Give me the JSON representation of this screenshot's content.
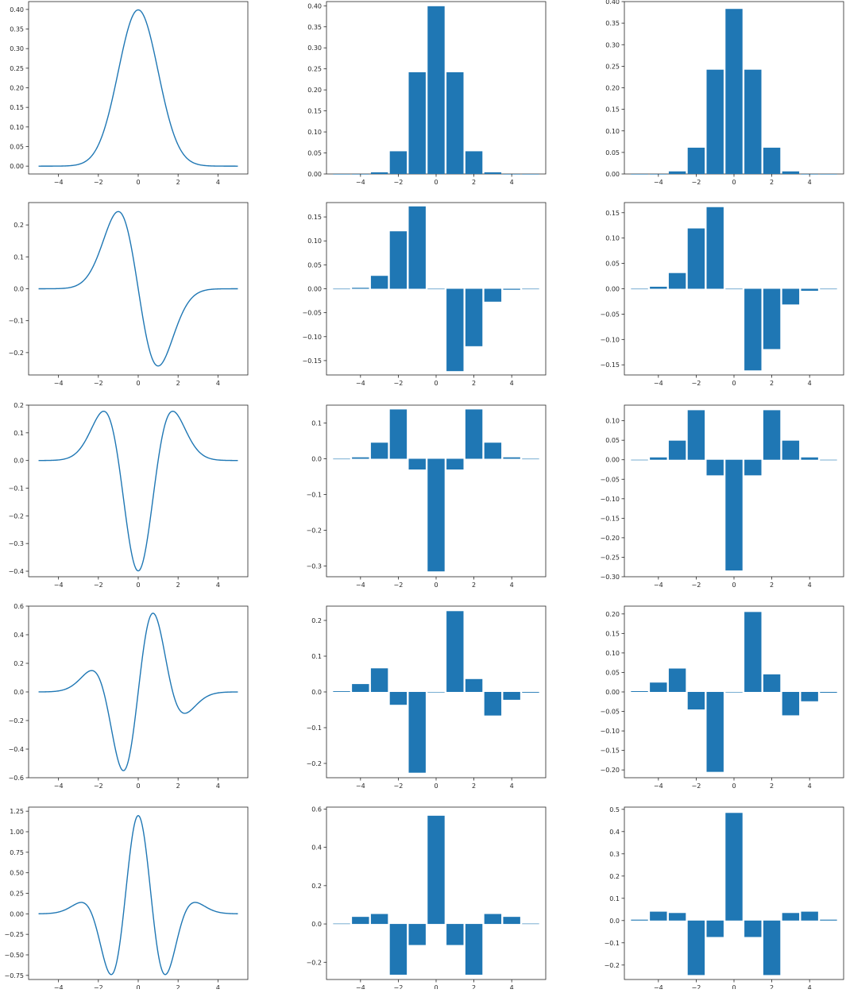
{
  "colors": {
    "series": "#1f77b4",
    "axis": "#262626",
    "zero": "#a6c8e0"
  },
  "chart_data": [
    {
      "type": "line",
      "x_range": [
        -5,
        5
      ],
      "xlim": [
        -5.5,
        5.5
      ],
      "ylim": [
        -0.02,
        0.42
      ],
      "xticks": [
        -4,
        -2,
        0,
        2,
        4
      ],
      "xtick_labels": [
        "−4",
        "−2",
        "0",
        "2",
        "4"
      ],
      "yticks": [
        0,
        0.05,
        0.1,
        0.15,
        0.2,
        0.25,
        0.3,
        0.35,
        0.4
      ],
      "ytick_labels": [
        "0.00",
        "0.05",
        "0.10",
        "0.15",
        "0.20",
        "0.25",
        "0.30",
        "0.35",
        "0.40"
      ],
      "title": "",
      "xlabel": "",
      "ylabel": ""
    },
    {
      "type": "bar",
      "x": [
        -5,
        -4,
        -3,
        -2,
        -1,
        0,
        1,
        2,
        3,
        4,
        5
      ],
      "values": [
        0,
        0,
        0.004,
        0.054,
        0.242,
        0.399,
        0.242,
        0.054,
        0.004,
        0,
        0
      ],
      "xlim": [
        -5.8,
        5.8
      ],
      "ylim": [
        0,
        0.41
      ],
      "xticks": [
        -4,
        -2,
        0,
        2,
        4
      ],
      "xtick_labels": [
        "−4",
        "−2",
        "0",
        "2",
        "4"
      ],
      "yticks": [
        0,
        0.05,
        0.1,
        0.15,
        0.2,
        0.25,
        0.3,
        0.35,
        0.4
      ],
      "ytick_labels": [
        "0.00",
        "0.05",
        "0.10",
        "0.15",
        "0.20",
        "0.25",
        "0.30",
        "0.35",
        "0.40"
      ],
      "title": "",
      "xlabel": "",
      "ylabel": ""
    },
    {
      "type": "bar",
      "x": [
        -5,
        -4,
        -3,
        -2,
        -1,
        0,
        1,
        2,
        3,
        4,
        5
      ],
      "values": [
        0,
        0,
        0.006,
        0.061,
        0.242,
        0.383,
        0.242,
        0.061,
        0.006,
        0,
        0
      ],
      "xlim": [
        -5.8,
        5.8
      ],
      "ylim": [
        0,
        0.4
      ],
      "xticks": [
        -4,
        -2,
        0,
        2,
        4
      ],
      "xtick_labels": [
        "−4",
        "−2",
        "0",
        "2",
        "4"
      ],
      "yticks": [
        0,
        0.05,
        0.1,
        0.15,
        0.2,
        0.25,
        0.3,
        0.35,
        0.4
      ],
      "ytick_labels": [
        "0.00",
        "0.05",
        "0.10",
        "0.15",
        "0.20",
        "0.25",
        "0.30",
        "0.35",
        "0.40"
      ],
      "title": "",
      "xlabel": "",
      "ylabel": ""
    },
    {
      "type": "line",
      "x_range": [
        -5,
        5
      ],
      "xlim": [
        -5.5,
        5.5
      ],
      "ylim": [
        -0.27,
        0.27
      ],
      "xticks": [
        -4,
        -2,
        0,
        2,
        4
      ],
      "xtick_labels": [
        "−4",
        "−2",
        "0",
        "2",
        "4"
      ],
      "yticks": [
        -0.2,
        -0.1,
        0,
        0.1,
        0.2
      ],
      "ytick_labels": [
        "−0.2",
        "−0.1",
        "0.0",
        "0.1",
        "0.2"
      ],
      "title": "",
      "xlabel": "",
      "ylabel": ""
    },
    {
      "type": "bar",
      "x": [
        -5,
        -4,
        -3,
        -2,
        -1,
        0,
        1,
        2,
        3,
        4,
        5
      ],
      "values": [
        0,
        0.002,
        0.027,
        0.12,
        0.172,
        0,
        -0.172,
        -0.12,
        -0.027,
        -0.002,
        0
      ],
      "xlim": [
        -5.8,
        5.8
      ],
      "ylim": [
        -0.18,
        0.18
      ],
      "xticks": [
        -4,
        -2,
        0,
        2,
        4
      ],
      "xtick_labels": [
        "−4",
        "−2",
        "0",
        "2",
        "4"
      ],
      "yticks": [
        -0.15,
        -0.1,
        -0.05,
        0,
        0.05,
        0.1,
        0.15
      ],
      "ytick_labels": [
        "−0.15",
        "−0.10",
        "−0.05",
        "0.00",
        "0.05",
        "0.10",
        "0.15"
      ],
      "title": "",
      "xlabel": "",
      "ylabel": ""
    },
    {
      "type": "bar",
      "x": [
        -5,
        -4,
        -3,
        -2,
        -1,
        0,
        1,
        2,
        3,
        4,
        5
      ],
      "values": [
        0,
        0.004,
        0.031,
        0.119,
        0.161,
        0,
        -0.161,
        -0.119,
        -0.031,
        -0.004,
        0
      ],
      "xlim": [
        -5.8,
        5.8
      ],
      "ylim": [
        -0.17,
        0.17
      ],
      "xticks": [
        -4,
        -2,
        0,
        2,
        4
      ],
      "xtick_labels": [
        "−4",
        "−2",
        "0",
        "2",
        "4"
      ],
      "yticks": [
        -0.15,
        -0.1,
        -0.05,
        0,
        0.05,
        0.1,
        0.15
      ],
      "ytick_labels": [
        "−0.15",
        "−0.10",
        "−0.05",
        "0.00",
        "0.05",
        "0.10",
        "0.15"
      ],
      "title": "",
      "xlabel": "",
      "ylabel": ""
    },
    {
      "type": "line",
      "x_range": [
        -5,
        5
      ],
      "xlim": [
        -5.5,
        5.5
      ],
      "ylim": [
        -0.42,
        0.2
      ],
      "xticks": [
        -4,
        -2,
        0,
        2,
        4
      ],
      "xtick_labels": [
        "−4",
        "−2",
        "0",
        "2",
        "4"
      ],
      "yticks": [
        -0.4,
        -0.3,
        -0.2,
        -0.1,
        0,
        0.1,
        0.2
      ],
      "ytick_labels": [
        "−0.4",
        "−0.3",
        "−0.2",
        "−0.1",
        "0.0",
        "0.1",
        "0.2"
      ],
      "title": "",
      "xlabel": "",
      "ylabel": ""
    },
    {
      "type": "bar",
      "x": [
        -5,
        -4,
        -3,
        -2,
        -1,
        0,
        1,
        2,
        3,
        4,
        5
      ],
      "values": [
        0,
        0.004,
        0.045,
        0.138,
        -0.03,
        -0.315,
        -0.03,
        0.138,
        0.045,
        0.004,
        0
      ],
      "xlim": [
        -5.8,
        5.8
      ],
      "ylim": [
        -0.33,
        0.15
      ],
      "xticks": [
        -4,
        -2,
        0,
        2,
        4
      ],
      "xtick_labels": [
        "−4",
        "−2",
        "0",
        "2",
        "4"
      ],
      "yticks": [
        -0.3,
        -0.2,
        -0.1,
        0,
        0.1
      ],
      "ytick_labels": [
        "−0.3",
        "−0.2",
        "−0.1",
        "0.0",
        "0.1"
      ],
      "title": "",
      "xlabel": "",
      "ylabel": ""
    },
    {
      "type": "bar",
      "x": [
        -5,
        -4,
        -3,
        -2,
        -1,
        0,
        1,
        2,
        3,
        4,
        5
      ],
      "values": [
        0,
        0.006,
        0.049,
        0.127,
        -0.04,
        -0.284,
        -0.04,
        0.127,
        0.049,
        0.006,
        0
      ],
      "xlim": [
        -5.8,
        5.8
      ],
      "ylim": [
        -0.3,
        0.14
      ],
      "xticks": [
        -4,
        -2,
        0,
        2,
        4
      ],
      "xtick_labels": [
        "−4",
        "−2",
        "0",
        "2",
        "4"
      ],
      "yticks": [
        -0.3,
        -0.25,
        -0.2,
        -0.15,
        -0.1,
        -0.05,
        0,
        0.05,
        0.1
      ],
      "ytick_labels": [
        "−0.30",
        "−0.25",
        "−0.20",
        "−0.15",
        "−0.10",
        "−0.05",
        "0.00",
        "0.05",
        "0.10"
      ],
      "title": "",
      "xlabel": "",
      "ylabel": ""
    },
    {
      "type": "line",
      "x_range": [
        -5,
        5
      ],
      "xlim": [
        -5.5,
        5.5
      ],
      "ylim": [
        -0.6,
        0.6
      ],
      "xticks": [
        -4,
        -2,
        0,
        2,
        4
      ],
      "xtick_labels": [
        "−4",
        "−2",
        "0",
        "2",
        "4"
      ],
      "yticks": [
        -0.6,
        -0.4,
        -0.2,
        0,
        0.2,
        0.4,
        0.6
      ],
      "ytick_labels": [
        "−0.6",
        "−0.4",
        "−0.2",
        "0.0",
        "0.2",
        "0.4",
        "0.6"
      ],
      "title": "",
      "xlabel": "",
      "ylabel": ""
    },
    {
      "type": "bar",
      "x": [
        -5,
        -4,
        -3,
        -2,
        -1,
        0,
        1,
        2,
        3,
        4,
        5
      ],
      "values": [
        0.002,
        0.022,
        0.066,
        -0.036,
        -0.226,
        0,
        0.226,
        0.036,
        -0.066,
        -0.022,
        -0.002
      ],
      "xlim": [
        -5.8,
        5.8
      ],
      "ylim": [
        -0.24,
        0.24
      ],
      "xticks": [
        -4,
        -2,
        0,
        2,
        4
      ],
      "xtick_labels": [
        "−4",
        "−2",
        "0",
        "2",
        "4"
      ],
      "yticks": [
        -0.2,
        -0.1,
        0,
        0.1,
        0.2
      ],
      "ytick_labels": [
        "−0.2",
        "−0.1",
        "0.0",
        "0.1",
        "0.2"
      ],
      "title": "",
      "xlabel": "",
      "ylabel": ""
    },
    {
      "type": "bar",
      "x": [
        -5,
        -4,
        -3,
        -2,
        -1,
        0,
        1,
        2,
        3,
        4,
        5
      ],
      "values": [
        0.002,
        0.024,
        0.06,
        -0.045,
        -0.205,
        0,
        0.205,
        0.045,
        -0.06,
        -0.024,
        -0.002
      ],
      "xlim": [
        -5.8,
        5.8
      ],
      "ylim": [
        -0.22,
        0.22
      ],
      "xticks": [
        -4,
        -2,
        0,
        2,
        4
      ],
      "xtick_labels": [
        "−4",
        "−2",
        "0",
        "2",
        "4"
      ],
      "yticks": [
        -0.2,
        -0.15,
        -0.1,
        -0.05,
        0,
        0.05,
        0.1,
        0.15,
        0.2
      ],
      "ytick_labels": [
        "−0.20",
        "−0.15",
        "−0.10",
        "−0.05",
        "0.00",
        "0.05",
        "0.10",
        "0.15",
        "0.20"
      ],
      "title": "",
      "xlabel": "",
      "ylabel": ""
    },
    {
      "type": "line",
      "x_range": [
        -5,
        5
      ],
      "xlim": [
        -5.5,
        5.5
      ],
      "ylim": [
        -0.8,
        1.3
      ],
      "xticks": [
        -4,
        -2,
        0,
        2,
        4
      ],
      "xtick_labels": [
        "−4",
        "−2",
        "0",
        "2",
        "4"
      ],
      "yticks": [
        -0.75,
        -0.5,
        -0.25,
        0,
        0.25,
        0.5,
        0.75,
        1,
        1.25
      ],
      "ytick_labels": [
        "−0.75",
        "−0.50",
        "−0.25",
        "0.00",
        "0.25",
        "0.50",
        "0.75",
        "1.00",
        "1.25"
      ],
      "title": "",
      "xlabel": "",
      "ylabel": ""
    },
    {
      "type": "bar",
      "x": [
        -5,
        -4,
        -3,
        -2,
        -1,
        0,
        1,
        2,
        3,
        4,
        5
      ],
      "values": [
        0.002,
        0.037,
        0.052,
        -0.265,
        -0.11,
        0.565,
        -0.11,
        -0.265,
        0.052,
        0.037,
        0.002
      ],
      "xlim": [
        -5.8,
        5.8
      ],
      "ylim": [
        -0.29,
        0.61
      ],
      "xticks": [
        -4,
        -2,
        0,
        2,
        4
      ],
      "xtick_labels": [
        "−4",
        "−2",
        "0",
        "2",
        "4"
      ],
      "yticks": [
        -0.2,
        0,
        0.2,
        0.4,
        0.6
      ],
      "ytick_labels": [
        "−0.2",
        "0.0",
        "0.2",
        "0.4",
        "0.6"
      ],
      "title": "",
      "xlabel": "",
      "ylabel": ""
    },
    {
      "type": "bar",
      "x": [
        -5,
        -4,
        -3,
        -2,
        -1,
        0,
        1,
        2,
        3,
        4,
        5
      ],
      "values": [
        0.004,
        0.04,
        0.034,
        -0.245,
        -0.074,
        0.484,
        -0.074,
        -0.245,
        0.034,
        0.04,
        0.004
      ],
      "xlim": [
        -5.8,
        5.8
      ],
      "ylim": [
        -0.265,
        0.51
      ],
      "xticks": [
        -4,
        -2,
        0,
        2,
        4
      ],
      "xtick_labels": [
        "−4",
        "−2",
        "0",
        "2",
        "4"
      ],
      "yticks": [
        -0.2,
        -0.1,
        0,
        0.1,
        0.2,
        0.3,
        0.4,
        0.5
      ],
      "ytick_labels": [
        "−0.2",
        "−0.1",
        "0.0",
        "0.1",
        "0.2",
        "0.3",
        "0.4",
        "0.5"
      ],
      "title": "",
      "xlabel": "",
      "ylabel": ""
    }
  ]
}
